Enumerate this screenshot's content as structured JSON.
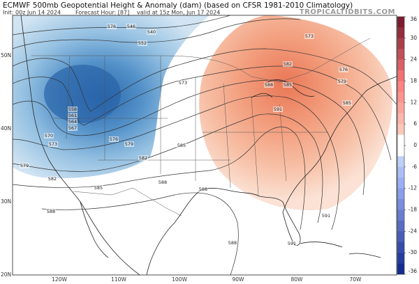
{
  "header": {
    "title": "ECMWF 500mb Geopotential Height & Anomaly (dam) (based on CFSR 1981-2010 Climatology)",
    "init": "Init: 00z Jun 14 2024",
    "forecast_hour": "Forecast Hour: [87]",
    "valid": "valid at 15z Mon, Jun 17 2024",
    "watermark": "TROPICALTIDBITS.COM"
  },
  "map": {
    "lat_labels": [
      "50N",
      "40N",
      "30N",
      "20N"
    ],
    "lon_labels": [
      "120W",
      "110W",
      "100W",
      "90W",
      "80W",
      "70W"
    ],
    "contour_labels": [
      "546",
      "540",
      "552",
      "576",
      "558",
      "561",
      "564",
      "567",
      "570",
      "573",
      "576",
      "579",
      "579",
      "582",
      "582",
      "585",
      "573",
      "588",
      "588",
      "585",
      "588",
      "573",
      "576",
      "579",
      "582",
      "585",
      "588",
      "591",
      "585",
      "591",
      "588",
      "591"
    ]
  },
  "colorbar": {
    "ticks": [
      36,
      30,
      24,
      18,
      12,
      6,
      0,
      -6,
      -12,
      -18,
      -24,
      -30,
      -36
    ]
  }
}
